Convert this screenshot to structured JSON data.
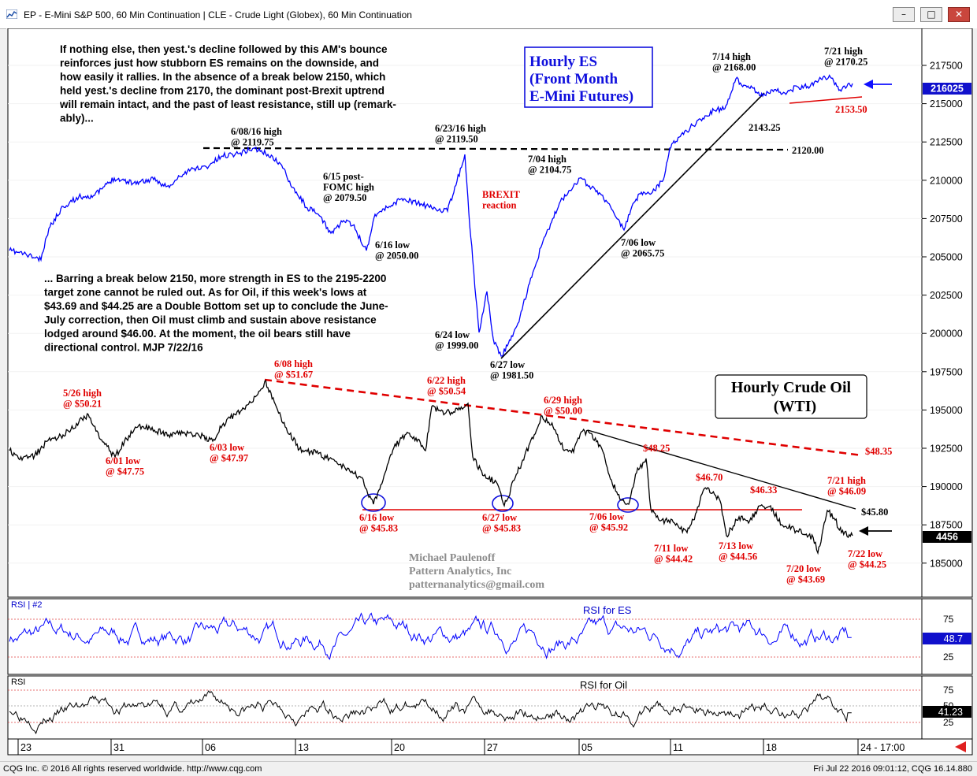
{
  "window": {
    "title": "EP - E-Mini S&P 500, 60 Min Continuation   |   CLE - Crude Light (Globex), 60 Min Continuation",
    "buttons": {
      "minimize": "–",
      "restore": "□",
      "close": "✕"
    }
  },
  "status": {
    "left": "CQG Inc. © 2016 All rights reserved worldwide. http://www.cqg.com",
    "right": "Fri Jul 22 2016 09:01:12, CQG 16.14.880"
  },
  "main": {
    "es_title": [
      "Hourly ES",
      "(Front Month",
      "E-Mini Futures)"
    ],
    "oil_title": [
      "Hourly Crude Oil",
      "(WTI)"
    ],
    "commentary_top": [
      "If nothing else, then yest.'s decline followed by this AM's bounce",
      "reinforces just how stubborn ES remains on the downside, and",
      "how easily it rallies. In the absence of a break below 2150, which",
      "held yest.'s decline from 2170, the dominant post-Brexit uptrend",
      "will remain intact, and the past of least resistance, still up (remark-",
      "ably)..."
    ],
    "commentary_bottom": [
      "... Barring a break below 2150, more strength in ES to the 2195-2200",
      "target zone cannot be ruled out. As for Oil, if this week's lows at",
      "$43.69 and $44.25 are a Double Bottom set up to conclude the June-",
      "July correction, then Oil must climb and sustain above resistance",
      "lodged around $46.00. At the moment, the oil bears still have",
      "directional control. MJP 7/22/16"
    ],
    "watermark": [
      "Michael Paulenoff",
      "Pattern Analytics, Inc",
      "patternanalytics@gmail.com"
    ],
    "price_axis": [
      "217500",
      "215000",
      "212500",
      "210000",
      "207500",
      "205000",
      "202500",
      "200000",
      "197500",
      "195000",
      "192500",
      "190000",
      "187500",
      "185000"
    ],
    "es_last": "216025",
    "oil_last": "4456"
  },
  "es_annotations": [
    {
      "lines": [
        "6/08/16 high",
        "@ 2119.75"
      ]
    },
    {
      "lines": [
        "6/15 post-",
        "FOMC high",
        "@ 2079.50"
      ]
    },
    {
      "lines": [
        "6/16 low",
        "@ 2050.00"
      ]
    },
    {
      "lines": [
        "6/23/16 high",
        "@ 2119.50"
      ]
    },
    {
      "lines": [
        "BREXIT",
        "reaction"
      ]
    },
    {
      "lines": [
        "6/24 low",
        "@ 1999.00"
      ]
    },
    {
      "lines": [
        "6/27 low",
        "@ 1981.50"
      ]
    },
    {
      "lines": [
        "7/04 high",
        "@ 2104.75"
      ]
    },
    {
      "lines": [
        "7/06 low",
        "@ 2065.75"
      ]
    },
    {
      "lines": [
        "7/14 high",
        "@ 2168.00"
      ]
    },
    {
      "lines": [
        "7/21 high",
        "@ 2170.25"
      ]
    },
    {
      "lines": [
        "2143.25"
      ]
    },
    {
      "lines": [
        "2153.50"
      ]
    },
    {
      "lines": [
        "2120.00"
      ]
    }
  ],
  "oil_annotations": [
    {
      "lines": [
        "5/26 high",
        "@ $50.21"
      ]
    },
    {
      "lines": [
        "6/01 low",
        "@ $47.75"
      ]
    },
    {
      "lines": [
        "6/03 low",
        "@ $47.97"
      ]
    },
    {
      "lines": [
        "6/08 high",
        "@ $51.67"
      ]
    },
    {
      "lines": [
        "6/16 low",
        "@ $45.83"
      ]
    },
    {
      "lines": [
        "6/22 high",
        "@ $50.54"
      ]
    },
    {
      "lines": [
        "6/27 low",
        "@ $45.83"
      ]
    },
    {
      "lines": [
        "6/29 high",
        "@ $50.00"
      ]
    },
    {
      "lines": [
        "7/06 low",
        "@ $45.92"
      ]
    },
    {
      "lines": [
        "$48.25"
      ]
    },
    {
      "lines": [
        "$46.70"
      ]
    },
    {
      "lines": [
        "$46.33"
      ]
    },
    {
      "lines": [
        "7/11 low",
        "@ $44.42"
      ]
    },
    {
      "lines": [
        "7/13 low",
        "@ $44.56"
      ]
    },
    {
      "lines": [
        "7/20 low",
        "@ $43.69"
      ]
    },
    {
      "lines": [
        "7/21 high",
        "@ $46.09"
      ]
    },
    {
      "lines": [
        "7/22 low",
        "@ $44.25"
      ]
    },
    {
      "lines": [
        "$48.35"
      ]
    },
    {
      "lines": [
        "$45.80"
      ]
    }
  ],
  "rsi_es": {
    "label": "RSI | #2",
    "title": "RSI for ES",
    "levels": [
      "75",
      "25"
    ],
    "last": "48.7"
  },
  "rsi_oil": {
    "label": "RSI",
    "title": "RSI for Oil",
    "levels": [
      "75",
      "50",
      "25"
    ],
    "last": "41.23"
  },
  "time_axis": [
    "23",
    "31",
    "06",
    "13",
    "20",
    "27",
    "05",
    "11",
    "18",
    "24 - 17:00"
  ],
  "colors": {
    "es": "#0000ff",
    "oil": "#000000",
    "annotation_red": "#e00000",
    "background": "#ffffff"
  },
  "chart_data": [
    {
      "type": "line",
      "title": "Hourly ES (Front Month E-Mini Futures)",
      "x": [
        "5/23",
        "6/08",
        "6/15",
        "6/16",
        "6/23",
        "6/24",
        "6/27",
        "7/04",
        "7/06",
        "7/14",
        "7/18",
        "7/21",
        "7/22"
      ],
      "series": [
        {
          "name": "ES",
          "values": [
            2050,
            2119.75,
            2079.5,
            2050,
            2119.5,
            1999,
            1981.5,
            2104.75,
            2065.75,
            2168,
            2143.25,
            2170.25,
            2160.25
          ]
        }
      ],
      "levels": [
        2120,
        2153.5
      ],
      "ylim": [
        1840,
        2190
      ]
    },
    {
      "type": "line",
      "title": "Hourly Crude Oil (WTI)",
      "x": [
        "5/26",
        "6/01",
        "6/03",
        "6/08",
        "6/16",
        "6/22",
        "6/27",
        "6/29",
        "7/06",
        "7/11",
        "7/13",
        "7/20",
        "7/21",
        "7/22"
      ],
      "series": [
        {
          "name": "Oil",
          "values": [
            50.21,
            47.75,
            47.97,
            51.67,
            45.83,
            50.54,
            45.83,
            50,
            45.92,
            44.42,
            44.56,
            43.69,
            46.09,
            44.25
          ]
        }
      ],
      "levels": [
        48.35,
        45.8
      ]
    },
    {
      "type": "line",
      "title": "RSI for ES",
      "ylim": [
        0,
        100
      ],
      "levels": [
        75,
        25
      ],
      "last": 48.7
    },
    {
      "type": "line",
      "title": "RSI for Oil",
      "ylim": [
        0,
        100
      ],
      "levels": [
        75,
        50,
        25
      ],
      "last": 41.23
    }
  ]
}
